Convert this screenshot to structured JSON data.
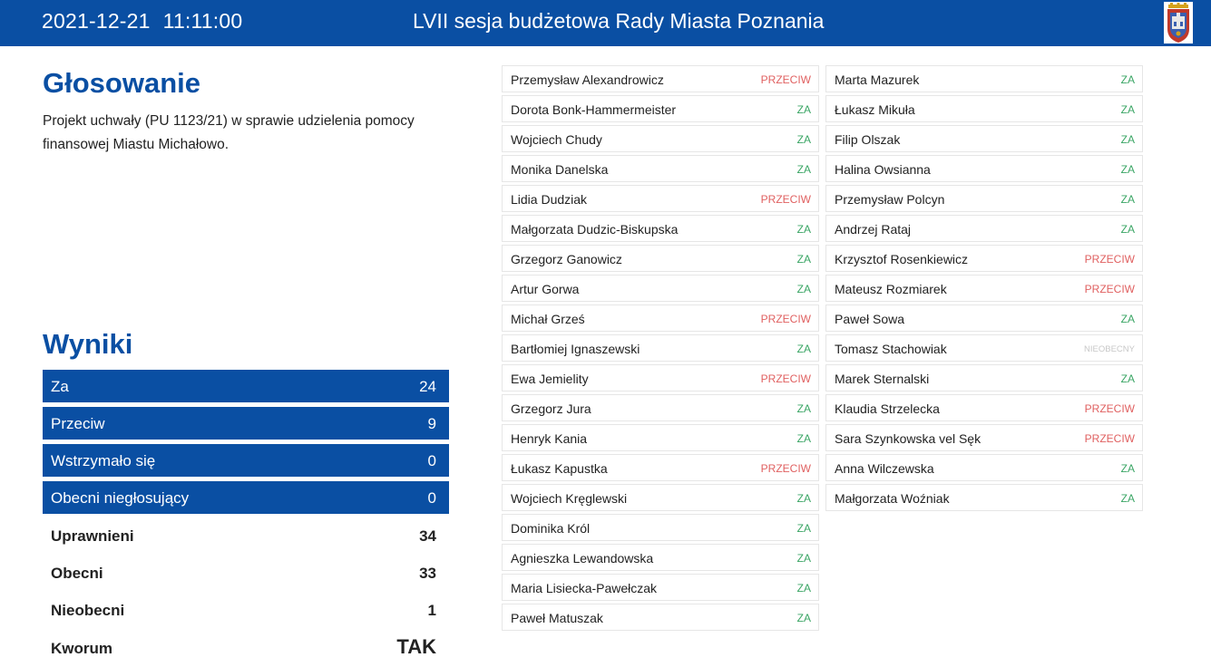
{
  "header": {
    "date": "2021-12-21",
    "time": "11:11:00",
    "title": "LVII sesja budżetowa Rady Miasta Poznania"
  },
  "voting": {
    "heading": "Głosowanie",
    "description": "Projekt uchwały (PU 1123/21) w sprawie udzielenia pomocy finansowej Miastu Michałowo."
  },
  "results": {
    "heading": "Wyniki",
    "items": [
      {
        "label": "Za",
        "value": "24"
      },
      {
        "label": "Przeciw",
        "value": "9"
      },
      {
        "label": "Wstrzymało się",
        "value": "0"
      },
      {
        "label": "Obecni niegłosujący",
        "value": "0"
      },
      {
        "label": "Uprawnieni",
        "value": "34"
      },
      {
        "label": "Obecni",
        "value": "33"
      },
      {
        "label": "Nieobecni",
        "value": "1"
      },
      {
        "label": "Kworum",
        "value": "TAK"
      }
    ]
  },
  "colors": {
    "brand": "#0a4fa3",
    "za": "#3aa564",
    "przeciw": "#e06060",
    "nieobecny": "#c8c8c8"
  },
  "councillors_left": [
    {
      "name": "Przemysław Alexandrowicz",
      "vote": "PRZECIW",
      "kind": "przeciw"
    },
    {
      "name": "Dorota Bonk-Hammermeister",
      "vote": "ZA",
      "kind": "za"
    },
    {
      "name": "Wojciech Chudy",
      "vote": "ZA",
      "kind": "za"
    },
    {
      "name": "Monika Danelska",
      "vote": "ZA",
      "kind": "za"
    },
    {
      "name": "Lidia Dudziak",
      "vote": "PRZECIW",
      "kind": "przeciw"
    },
    {
      "name": "Małgorzata Dudzic-Biskupska",
      "vote": "ZA",
      "kind": "za"
    },
    {
      "name": "Grzegorz Ganowicz",
      "vote": "ZA",
      "kind": "za"
    },
    {
      "name": "Artur Gorwa",
      "vote": "ZA",
      "kind": "za"
    },
    {
      "name": "Michał Grześ",
      "vote": "PRZECIW",
      "kind": "przeciw"
    },
    {
      "name": "Bartłomiej Ignaszewski",
      "vote": "ZA",
      "kind": "za"
    },
    {
      "name": "Ewa Jemielity",
      "vote": "PRZECIW",
      "kind": "przeciw"
    },
    {
      "name": "Grzegorz Jura",
      "vote": "ZA",
      "kind": "za"
    },
    {
      "name": "Henryk Kania",
      "vote": "ZA",
      "kind": "za"
    },
    {
      "name": "Łukasz Kapustka",
      "vote": "PRZECIW",
      "kind": "przeciw"
    },
    {
      "name": "Wojciech Kręglewski",
      "vote": "ZA",
      "kind": "za"
    },
    {
      "name": "Dominika Król",
      "vote": "ZA",
      "kind": "za"
    },
    {
      "name": "Agnieszka Lewandowska",
      "vote": "ZA",
      "kind": "za"
    },
    {
      "name": "Maria Lisiecka-Pawełczak",
      "vote": "ZA",
      "kind": "za"
    },
    {
      "name": "Paweł Matuszak",
      "vote": "ZA",
      "kind": "za"
    }
  ],
  "councillors_right": [
    {
      "name": "Marta Mazurek",
      "vote": "ZA",
      "kind": "za"
    },
    {
      "name": "Łukasz Mikuła",
      "vote": "ZA",
      "kind": "za"
    },
    {
      "name": "Filip Olszak",
      "vote": "ZA",
      "kind": "za"
    },
    {
      "name": "Halina Owsianna",
      "vote": "ZA",
      "kind": "za"
    },
    {
      "name": "Przemysław Polcyn",
      "vote": "ZA",
      "kind": "za"
    },
    {
      "name": "Andrzej Rataj",
      "vote": "ZA",
      "kind": "za"
    },
    {
      "name": "Krzysztof Rosenkiewicz",
      "vote": "PRZECIW",
      "kind": "przeciw"
    },
    {
      "name": "Mateusz Rozmiarek",
      "vote": "PRZECIW",
      "kind": "przeciw"
    },
    {
      "name": "Paweł Sowa",
      "vote": "ZA",
      "kind": "za"
    },
    {
      "name": "Tomasz Stachowiak",
      "vote": "NIEOBECNY",
      "kind": "nieobecny"
    },
    {
      "name": "Marek Sternalski",
      "vote": "ZA",
      "kind": "za"
    },
    {
      "name": "Klaudia Strzelecka",
      "vote": "PRZECIW",
      "kind": "przeciw"
    },
    {
      "name": "Sara Szynkowska vel Sęk",
      "vote": "PRZECIW",
      "kind": "przeciw"
    },
    {
      "name": "Anna Wilczewska",
      "vote": "ZA",
      "kind": "za"
    },
    {
      "name": "Małgorzata Woźniak",
      "vote": "ZA",
      "kind": "za"
    }
  ]
}
